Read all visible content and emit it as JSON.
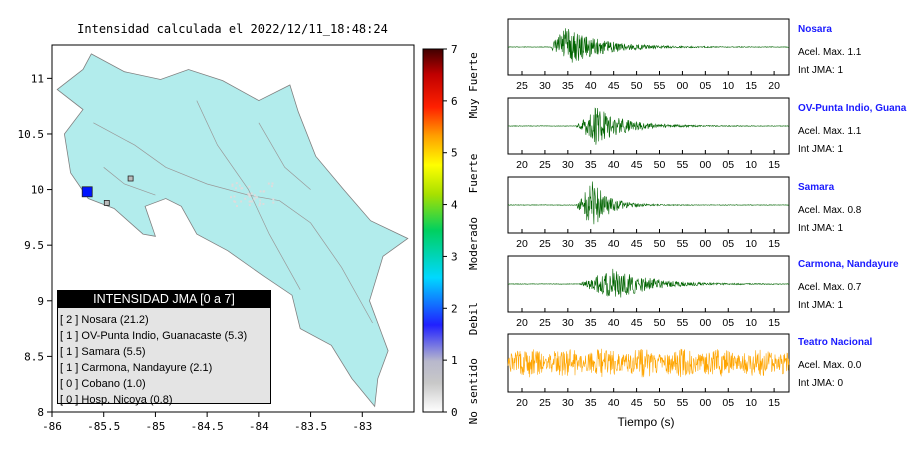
{
  "title": "Intensidad calculada el 2022/12/11_18:48:24",
  "colors": {
    "ocean": "#ffffff",
    "land": "#b2ecec",
    "station": "#0014ff",
    "wave_green": "#006400",
    "wave_orange": "#ffa500"
  },
  "chart_data": [
    {
      "type": "map",
      "xlim": [
        -86,
        -82.5
      ],
      "ylim": [
        8,
        11.3
      ],
      "xticks": [
        "-86",
        "-85.5",
        "-85",
        "-84.5",
        "-84",
        "-83.5",
        "-83"
      ],
      "yticks": [
        "8",
        "8.5",
        "9",
        "9.5",
        "10",
        "10.5",
        "11"
      ],
      "stations": [
        {
          "name": "Nosara",
          "lon": -85.66,
          "lat": 9.98,
          "intensity": 2,
          "color": "#0014ff"
        },
        {
          "name": "Samara",
          "lon": -85.47,
          "lat": 9.88,
          "intensity": 1,
          "color": "#bbbbbb"
        },
        {
          "name": "OV-Punta Indio",
          "lon": -85.24,
          "lat": 10.1,
          "intensity": 1,
          "color": "#bbbbbb"
        }
      ]
    },
    {
      "type": "colorbar",
      "range": [
        0,
        7
      ],
      "ticks": [
        "0",
        "1",
        "2",
        "3",
        "4",
        "5",
        "6",
        "7"
      ],
      "labels": [
        "No sentido",
        "Debil",
        "Moderado",
        "Fuerte",
        "Muy Fuerte"
      ]
    },
    {
      "type": "line",
      "xlabel": "Tiempo (s)",
      "traces": [
        {
          "name": "Nosara",
          "acel": "Acel. Max. 1.1",
          "int": "Int JMA: 1",
          "ticks": [
            "25",
            "30",
            "35",
            "40",
            "45",
            "50",
            "55",
            "00",
            "05",
            "10",
            "15",
            "20"
          ],
          "color": "#006400",
          "onset": 0.15,
          "peak": 0.2,
          "amp": 0.75,
          "decay": 0.12
        },
        {
          "name": "OV-Punta Indio, Guana",
          "acel": "Acel. Max. 1.1",
          "int": "Int JMA: 1",
          "ticks": [
            "20",
            "25",
            "30",
            "35",
            "40",
            "45",
            "50",
            "55",
            "00",
            "05",
            "10",
            "15"
          ],
          "color": "#006400",
          "onset": 0.24,
          "peak": 0.31,
          "amp": 0.7,
          "decay": 0.1
        },
        {
          "name": "Samara",
          "acel": "Acel. Max. 0.8",
          "int": "Int JMA: 1",
          "ticks": [
            "20",
            "25",
            "30",
            "35",
            "40",
            "45",
            "50",
            "55",
            "00",
            "05",
            "10",
            "15"
          ],
          "color": "#006400",
          "onset": 0.24,
          "peak": 0.3,
          "amp": 0.85,
          "decay": 0.06
        },
        {
          "name": "Carmona, Nandayure",
          "acel": "Acel. Max. 0.7",
          "int": "Int JMA: 1",
          "ticks": [
            "20",
            "25",
            "30",
            "35",
            "40",
            "45",
            "50",
            "55",
            "00",
            "05",
            "10",
            "15"
          ],
          "color": "#006400",
          "onset": 0.25,
          "peak": 0.38,
          "amp": 0.6,
          "decay": 0.12
        },
        {
          "name": "Teatro Nacional",
          "acel": "Acel. Max. 0.0",
          "int": "Int JMA: 0",
          "ticks": [
            "20",
            "25",
            "30",
            "35",
            "40",
            "45",
            "50",
            "55",
            "00",
            "05",
            "10",
            "15"
          ],
          "color": "#ffa500",
          "onset": 0.0,
          "peak": 0.25,
          "amp": 0.5,
          "decay": 0.0
        }
      ]
    }
  ],
  "legend": {
    "title": "INTENSIDAD JMA [0 a 7]",
    "rows": [
      "[ 2 ]  Nosara (21.2)",
      "[ 1 ]  OV-Punta Indio, Guanacaste (5.3)",
      "[ 1 ]  Samara (5.5)",
      "[ 1 ]  Carmona, Nandayure (2.1)",
      "[ 0 ]  Cobano (1.0)",
      "[ 0 ]  Hosp. Nicoya (0.8)"
    ]
  }
}
